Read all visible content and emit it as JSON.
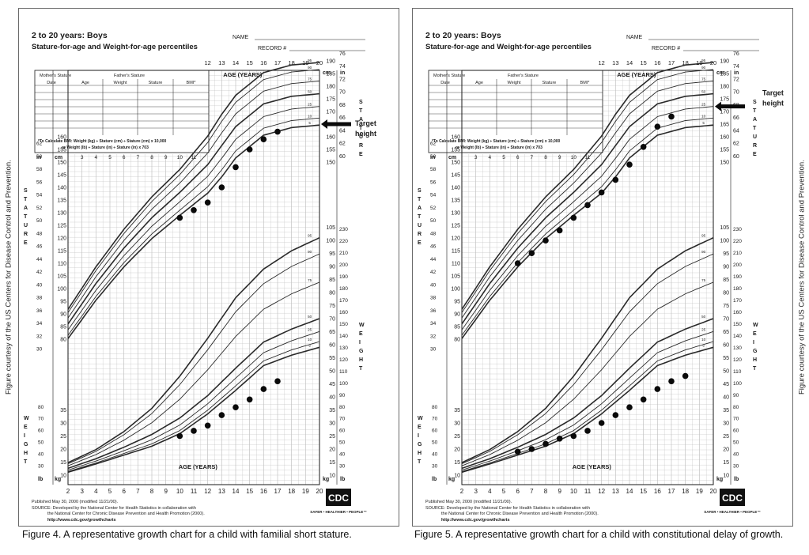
{
  "side_note": "Figure courtesy of the US Centers for Disease Control and Prevention.",
  "common": {
    "title": "2 to 20 years: Boys",
    "subtitle": "Stature-for-age and Weight-for-age percentiles",
    "name_label": "NAME",
    "record_label": "RECORD #",
    "mother_stature": "Mother's Stature",
    "father_stature": "Father's Stature",
    "table_headers": [
      "Date",
      "Age",
      "Weight",
      "Stature",
      "BMI*"
    ],
    "bmi_note_1": "*To Calculate BMI: Weight (kg) ÷ Stature (cm) ÷ Stature (cm) x 10,000",
    "bmi_note_2": "or Weight (lb) ÷ Stature (in) ÷ Stature (in) x 703",
    "age_years": "AGE (YEARS)",
    "unit_in": "in",
    "unit_cm": "cm",
    "unit_lb": "lb",
    "unit_kg": "kg",
    "stature_label": "STATURE",
    "weight_label": "WEIGHT",
    "published": "Published May 30, 2000 (modified 11/21/00).",
    "source_1": "SOURCE: Developed by the National Center for Health Statistics in collaboration with",
    "source_2": "the National Center for Chronic Disease Prevention and Health Promotion (2000).",
    "source_3": "http://www.cdc.gov/growthcharts",
    "cdc_logo": "CDC",
    "cdc_tagline": "SAFER • HEALTHIER • PEOPLE™",
    "target_height": [
      "Target",
      "height"
    ],
    "percentiles": [
      "95",
      "90",
      "75",
      "50",
      "25",
      "10",
      "5"
    ],
    "colors": {
      "ink": "#1a1a1a",
      "grid": "#c2c2c2",
      "curve": "#2a2a2a",
      "point": "#0a0a0a"
    }
  },
  "figures": [
    {
      "caption": "Figure 4. A representative growth chart for a child with familial short stature.",
      "chart_data": {
        "type": "line",
        "x_range": [
          2,
          20
        ],
        "y_range_stature_cm": [
          80,
          200
        ],
        "y_range_weight_kg": [
          10,
          105
        ],
        "stature_points": [
          {
            "age": 10,
            "cm": 128
          },
          {
            "age": 11,
            "cm": 131
          },
          {
            "age": 12,
            "cm": 134
          },
          {
            "age": 13,
            "cm": 140
          },
          {
            "age": 14,
            "cm": 148
          },
          {
            "age": 15,
            "cm": 155
          },
          {
            "age": 16,
            "cm": 159
          },
          {
            "age": 17,
            "cm": 162
          }
        ],
        "weight_points": [
          {
            "age": 10,
            "kg": 25
          },
          {
            "age": 11,
            "kg": 27
          },
          {
            "age": 12,
            "kg": 29
          },
          {
            "age": 13,
            "kg": 33
          },
          {
            "age": 14,
            "kg": 36
          },
          {
            "age": 15,
            "kg": 39
          },
          {
            "age": 16,
            "kg": 43
          },
          {
            "age": 17,
            "kg": 46
          }
        ],
        "target_height_cm": 165
      }
    },
    {
      "caption": "Figure 5. A representative growth chart for a child with constitutional delay of growth.",
      "chart_data": {
        "type": "line",
        "x_range": [
          2,
          20
        ],
        "y_range_stature_cm": [
          80,
          200
        ],
        "y_range_weight_kg": [
          10,
          105
        ],
        "stature_points": [
          {
            "age": 6,
            "cm": 110
          },
          {
            "age": 7,
            "cm": 114
          },
          {
            "age": 8,
            "cm": 119
          },
          {
            "age": 9,
            "cm": 123
          },
          {
            "age": 10,
            "cm": 128
          },
          {
            "age": 11,
            "cm": 133
          },
          {
            "age": 12,
            "cm": 138
          },
          {
            "age": 13,
            "cm": 143
          },
          {
            "age": 14,
            "cm": 149
          },
          {
            "age": 15,
            "cm": 156
          },
          {
            "age": 16,
            "cm": 164
          },
          {
            "age": 17,
            "cm": 168
          }
        ],
        "weight_points": [
          {
            "age": 6,
            "kg": 19
          },
          {
            "age": 7,
            "kg": 20
          },
          {
            "age": 8,
            "kg": 22
          },
          {
            "age": 9,
            "kg": 24
          },
          {
            "age": 10,
            "kg": 25
          },
          {
            "age": 11,
            "kg": 27
          },
          {
            "age": 12,
            "kg": 30
          },
          {
            "age": 13,
            "kg": 33
          },
          {
            "age": 14,
            "kg": 36
          },
          {
            "age": 15,
            "kg": 39
          },
          {
            "age": 16,
            "kg": 43
          },
          {
            "age": 17,
            "kg": 46
          },
          {
            "age": 18,
            "kg": 48
          }
        ],
        "target_height_cm": 172
      }
    }
  ]
}
